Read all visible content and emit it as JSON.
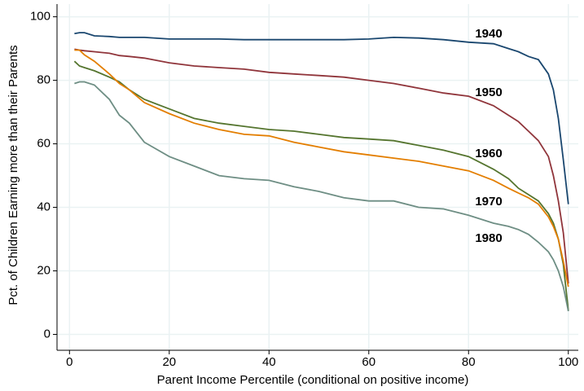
{
  "chart_data": {
    "type": "line",
    "xlabel": "Parent Income Percentile (conditional on positive income)",
    "ylabel": "Pct. of Children Earning more than their Parents",
    "x": [
      1,
      2,
      3,
      5,
      8,
      10,
      12,
      15,
      20,
      25,
      30,
      35,
      40,
      45,
      50,
      55,
      60,
      65,
      70,
      75,
      80,
      85,
      88,
      90,
      92,
      94,
      96,
      97,
      98,
      99,
      100
    ],
    "series": [
      {
        "name": "1940",
        "color": "#1a476f",
        "values": [
          94.7,
          95,
          95,
          94,
          93.8,
          93.5,
          93.5,
          93.5,
          93,
          93,
          93,
          92.8,
          92.8,
          92.8,
          92.8,
          92.8,
          93,
          93.5,
          93.3,
          92.8,
          92,
          91.5,
          90,
          89,
          87.5,
          86.5,
          82,
          77,
          68,
          55,
          41
        ]
      },
      {
        "name": "1950",
        "color": "#90353b",
        "values": [
          89.8,
          89.5,
          89.3,
          89,
          88.5,
          87.8,
          87.5,
          87,
          85.5,
          84.5,
          84,
          83.5,
          82.5,
          82,
          81.5,
          81,
          80,
          79,
          77.5,
          76,
          75,
          72,
          69,
          67,
          64,
          61,
          56,
          50,
          42,
          32,
          16
        ]
      },
      {
        "name": "1960",
        "color": "#55752f",
        "values": [
          86,
          84.5,
          84,
          83,
          81,
          79.5,
          77,
          74,
          71,
          68,
          66.5,
          65.5,
          64.5,
          64,
          63,
          62,
          61.5,
          61,
          59.5,
          58,
          56,
          52,
          49,
          46,
          44,
          42,
          38,
          35,
          30,
          22,
          7.5
        ]
      },
      {
        "name": "1970",
        "color": "#e37e00",
        "values": [
          89.5,
          89.5,
          88,
          86,
          82,
          79,
          77,
          73,
          69.5,
          66.5,
          64.5,
          63,
          62.5,
          60.5,
          59,
          57.5,
          56.5,
          55.5,
          54.5,
          53,
          51.5,
          48.5,
          46,
          44.5,
          43,
          41,
          37,
          34,
          30,
          23,
          15
        ]
      },
      {
        "name": "1980",
        "color": "#6e8e84",
        "values": [
          79,
          79.5,
          79.5,
          78.5,
          74,
          69,
          66.5,
          60.5,
          56,
          53,
          50,
          49,
          48.5,
          46.5,
          45,
          43,
          42,
          42,
          40,
          39.5,
          37.5,
          35,
          34,
          33,
          31.5,
          29,
          26,
          23.5,
          20,
          15,
          7.3
        ]
      }
    ],
    "xlim": [
      -2.5,
      102
    ],
    "ylim": [
      -5,
      104
    ],
    "xticks": [
      0,
      20,
      40,
      60,
      80,
      100
    ],
    "yticks": [
      0,
      20,
      40,
      60,
      80,
      100
    ],
    "grid": true
  }
}
